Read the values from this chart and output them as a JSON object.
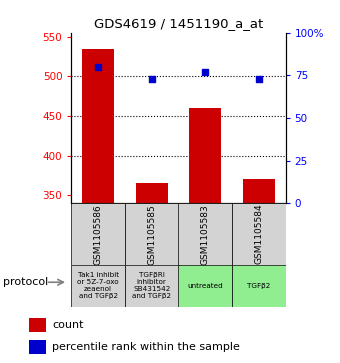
{
  "title": "GDS4619 / 1451190_a_at",
  "samples": [
    "GSM1105586",
    "GSM1105585",
    "GSM1105583",
    "GSM1105584"
  ],
  "bar_values": [
    535,
    365,
    460,
    370
  ],
  "dot_values": [
    80,
    73,
    77,
    73
  ],
  "bar_color": "#cc0000",
  "dot_color": "#0000cc",
  "ylim_left": [
    340,
    555
  ],
  "ylim_right": [
    0,
    100
  ],
  "yticks_left": [
    350,
    400,
    450,
    500,
    550
  ],
  "yticks_right": [
    0,
    25,
    50,
    75,
    100
  ],
  "ytick_labels_right": [
    "0",
    "25",
    "50",
    "75",
    "100%"
  ],
  "grid_values": [
    400,
    450,
    500
  ],
  "protocol_labels": [
    "Tak1 inhibit\nor 5Z-7-oxo\nzeaenol\nand TGFβ2",
    "TGFβRI\ninhibitor\nSB431542\nand TGFβ2",
    "untreated",
    "TGFβ2"
  ],
  "protocol_colors": [
    "#d3d3d3",
    "#d3d3d3",
    "#90ee90",
    "#90ee90"
  ],
  "bar_chart_bg": "#d3d3d3",
  "legend_count_label": "count",
  "legend_pct_label": "percentile rank within the sample",
  "protocol_arrow_label": "protocol"
}
